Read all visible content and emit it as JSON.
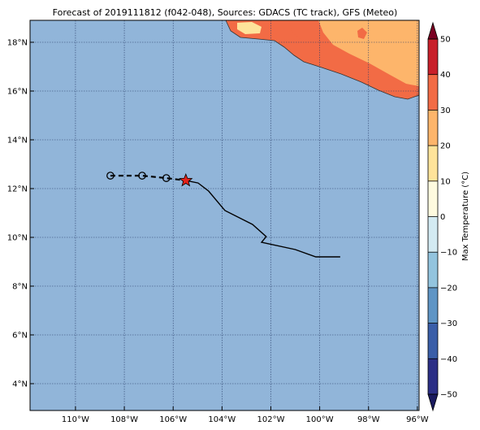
{
  "chart_data": {
    "type": "map",
    "title": "Forecast of 2019111812 (f042-048), Sources: GDACS (TC track), GFS (Meteo)",
    "xlim": [
      -111.86,
      -95.93
    ],
    "ylim": [
      2.9,
      18.9
    ],
    "xticks": [
      {
        "value": -110,
        "label": "110°W"
      },
      {
        "value": -108,
        "label": "108°W"
      },
      {
        "value": -106,
        "label": "106°W"
      },
      {
        "value": -104,
        "label": "104°W"
      },
      {
        "value": -102,
        "label": "102°W"
      },
      {
        "value": -100,
        "label": "100°W"
      },
      {
        "value": -98,
        "label": "98°W"
      },
      {
        "value": -96,
        "label": "96°W"
      }
    ],
    "yticks": [
      {
        "value": 4,
        "label": "4°N"
      },
      {
        "value": 6,
        "label": "6°N"
      },
      {
        "value": 8,
        "label": "8°N"
      },
      {
        "value": 10,
        "label": "10°N"
      },
      {
        "value": 12,
        "label": "12°N"
      },
      {
        "value": 14,
        "label": "14°N"
      },
      {
        "value": 16,
        "label": "16°N"
      },
      {
        "value": 18,
        "label": "18°N"
      }
    ],
    "grid": true,
    "tracks": [
      {
        "x": [
          -108.57,
          -107.27,
          -106.28,
          -105.48
        ],
        "values": [
          12.53,
          12.53,
          12.43,
          12.33
        ],
        "color": "#000000",
        "dash": true
      },
      {
        "x": [
          -105.48,
          -104.98,
          -104.55,
          -103.88,
          -102.75,
          -102.19,
          -102.38,
          -101.0,
          -100.16,
          -99.16
        ],
        "values": [
          12.33,
          12.23,
          11.9,
          11.1,
          10.53,
          10.03,
          9.8,
          9.5,
          9.2,
          9.2
        ],
        "color": "#000000",
        "dash": false
      }
    ],
    "markers": [
      {
        "x": [
          -108.57,
          -107.27,
          -106.28
        ],
        "values": [
          12.53,
          12.53,
          12.43
        ],
        "shape": "circle",
        "color": "#000000"
      },
      {
        "x": [
          -105.48
        ],
        "values": [
          12.33
        ],
        "shape": "star",
        "color": "#e32119"
      }
    ],
    "colorbar": {
      "label": "Max Temperature (°C)",
      "lim": [
        -50,
        50
      ],
      "ticks": [
        {
          "value": -50,
          "label": "−50"
        },
        {
          "value": -40,
          "label": "−40"
        },
        {
          "value": -30,
          "label": "−30"
        },
        {
          "value": -20,
          "label": "−20"
        },
        {
          "value": -10,
          "label": "−10"
        },
        0,
        10,
        20,
        30,
        40,
        50
      ],
      "colors": [
        "#2c2f86",
        "#3a5ea8",
        "#5f95c5",
        "#93c4de",
        "#d3eaf2",
        "#fefadf",
        "#fee39a",
        "#fdb56b",
        "#f26b45",
        "#c8202a"
      ],
      "under_color": "#1a1a5e",
      "over_color": "#7a0022"
    }
  }
}
